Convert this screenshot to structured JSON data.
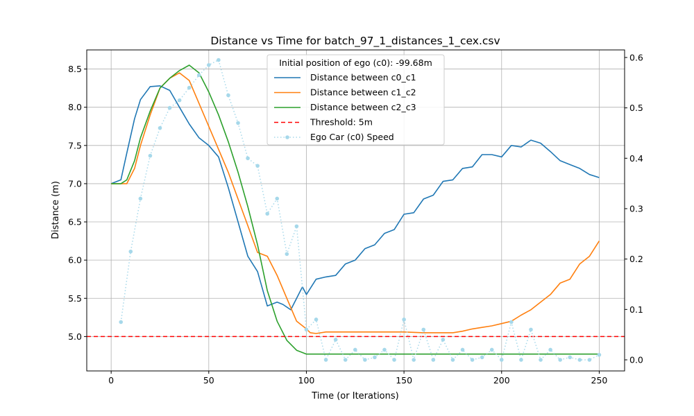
{
  "chart_data": {
    "type": "line",
    "title": "Distance vs Time for batch_97_1_distances_1_cex.csv",
    "xlabel": "Time (or Iterations)",
    "ylabel": "Distance (m)",
    "xlim": [
      -12.5,
      263
    ],
    "ylim": [
      4.55,
      8.75
    ],
    "y2lim": [
      -0.022,
      0.615
    ],
    "grid": true,
    "x_ticks": [
      0,
      50,
      100,
      150,
      200,
      250
    ],
    "y_ticks": [
      5.0,
      5.5,
      6.0,
      6.5,
      7.0,
      7.5,
      8.0,
      8.5
    ],
    "y2_ticks": [
      0.0,
      0.1,
      0.2,
      0.3,
      0.4,
      0.5,
      0.6
    ],
    "legend": {
      "title": "Initial position of ego (c0): -99.68m",
      "placement": "top-center"
    },
    "colors": {
      "c0_c1": "#1f77b4",
      "c1_c2": "#ff7f0e",
      "c2_c3": "#2ca02c",
      "threshold": "#ff0000",
      "speed": "#a6d8ea"
    },
    "series": [
      {
        "name": "Distance between c0_c1",
        "axis": "left",
        "x": [
          0,
          5,
          8,
          12,
          15,
          20,
          25,
          30,
          35,
          40,
          45,
          50,
          55,
          60,
          65,
          70,
          75,
          80,
          85,
          88,
          92,
          95,
          98,
          100,
          105,
          110,
          115,
          120,
          125,
          130,
          135,
          140,
          145,
          150,
          155,
          160,
          165,
          170,
          175,
          180,
          185,
          190,
          195,
          200,
          205,
          210,
          215,
          220,
          225,
          230,
          235,
          240,
          245,
          250
        ],
        "values": [
          7.0,
          7.05,
          7.4,
          7.85,
          8.1,
          8.27,
          8.28,
          8.22,
          8.0,
          7.78,
          7.6,
          7.5,
          7.35,
          6.95,
          6.5,
          6.05,
          5.85,
          5.4,
          5.45,
          5.42,
          5.35,
          5.5,
          5.65,
          5.55,
          5.75,
          5.78,
          5.8,
          5.95,
          6.0,
          6.15,
          6.2,
          6.35,
          6.4,
          6.6,
          6.62,
          6.8,
          6.85,
          7.03,
          7.05,
          7.2,
          7.22,
          7.38,
          7.38,
          7.35,
          7.5,
          7.48,
          7.57,
          7.53,
          7.42,
          7.3,
          7.25,
          7.2,
          7.12,
          7.08
        ]
      },
      {
        "name": "Distance between c1_c2",
        "axis": "left",
        "x": [
          0,
          5,
          8,
          12,
          15,
          20,
          25,
          30,
          35,
          40,
          45,
          50,
          55,
          60,
          65,
          70,
          75,
          80,
          85,
          90,
          95,
          100,
          102,
          105,
          110,
          120,
          130,
          140,
          150,
          160,
          170,
          175,
          180,
          185,
          190,
          195,
          200,
          205,
          210,
          215,
          220,
          225,
          230,
          235,
          240,
          245,
          250
        ],
        "values": [
          7.0,
          7.0,
          7.0,
          7.2,
          7.5,
          7.9,
          8.25,
          8.38,
          8.45,
          8.35,
          8.05,
          7.75,
          7.45,
          7.15,
          6.8,
          6.45,
          6.1,
          6.05,
          5.8,
          5.5,
          5.2,
          5.1,
          5.05,
          5.04,
          5.06,
          5.06,
          5.06,
          5.06,
          5.06,
          5.05,
          5.05,
          5.05,
          5.07,
          5.1,
          5.12,
          5.14,
          5.17,
          5.2,
          5.28,
          5.35,
          5.45,
          5.55,
          5.7,
          5.75,
          5.95,
          6.05,
          6.25
        ]
      },
      {
        "name": "Distance between c2_c3",
        "axis": "left",
        "x": [
          0,
          5,
          8,
          12,
          15,
          20,
          25,
          30,
          35,
          40,
          45,
          50,
          55,
          60,
          65,
          70,
          75,
          80,
          85,
          90,
          95,
          100,
          105,
          110,
          120,
          140,
          160,
          180,
          200,
          220,
          240,
          250
        ],
        "values": [
          7.0,
          7.0,
          7.05,
          7.3,
          7.6,
          7.95,
          8.25,
          8.38,
          8.48,
          8.55,
          8.45,
          8.2,
          7.9,
          7.55,
          7.15,
          6.7,
          6.2,
          5.6,
          5.2,
          4.95,
          4.82,
          4.77,
          4.77,
          4.77,
          4.77,
          4.77,
          4.77,
          4.77,
          4.77,
          4.77,
          4.77,
          4.77
        ]
      },
      {
        "name": "Threshold: 5m",
        "axis": "left",
        "kind": "hline",
        "value": 5.0
      },
      {
        "name": "Ego Car (c0) Speed",
        "axis": "right",
        "x": [
          5,
          10,
          15,
          20,
          25,
          30,
          35,
          40,
          45,
          50,
          55,
          60,
          65,
          70,
          75,
          80,
          85,
          90,
          95,
          100,
          105,
          110,
          115,
          120,
          125,
          130,
          135,
          140,
          145,
          150,
          155,
          160,
          165,
          170,
          175,
          180,
          185,
          190,
          195,
          200,
          205,
          210,
          215,
          220,
          225,
          230,
          235,
          240,
          245,
          250
        ],
        "values": [
          0.075,
          0.215,
          0.32,
          0.405,
          0.46,
          0.5,
          0.515,
          0.54,
          0.565,
          0.585,
          0.595,
          0.525,
          0.47,
          0.4,
          0.385,
          0.29,
          0.32,
          0.21,
          0.265,
          0.06,
          0.08,
          0.0,
          0.04,
          0.0,
          0.02,
          0.0,
          0.005,
          0.02,
          0.0,
          0.08,
          0.0,
          0.06,
          0.0,
          0.04,
          0.0,
          0.02,
          0.0,
          0.005,
          0.02,
          0.0,
          0.075,
          0.0,
          0.06,
          0.0,
          0.02,
          0.0,
          0.005,
          0.0,
          0.0,
          0.01
        ]
      }
    ]
  }
}
